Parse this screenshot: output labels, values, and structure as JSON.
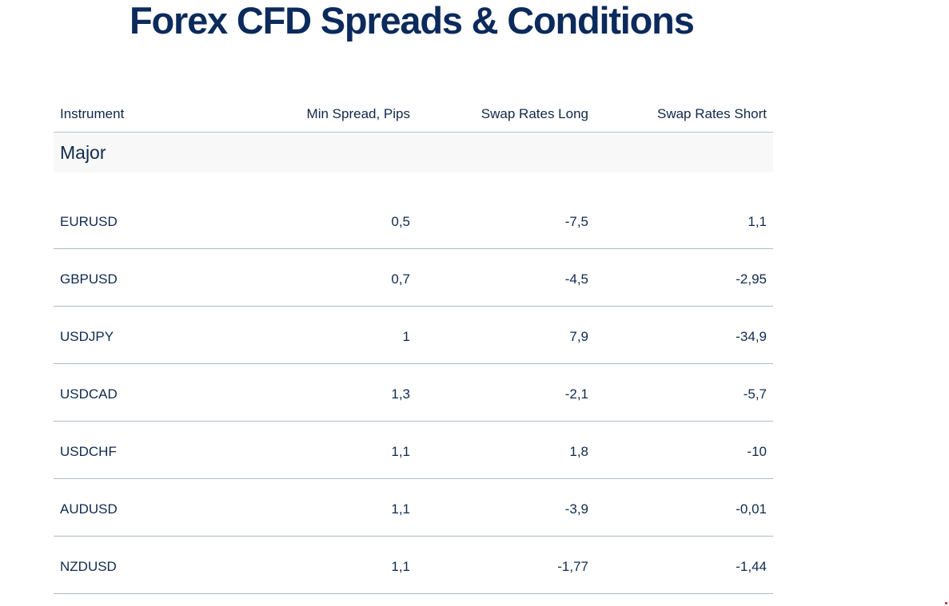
{
  "page": {
    "title": "Forex CFD Spreads & Conditions"
  },
  "table": {
    "headers": {
      "instrument": "Instrument",
      "min_spread": "Min Spread, Pips",
      "swap_long": "Swap Rates Long",
      "swap_short": "Swap Rates Short"
    },
    "group_label": "Major",
    "rows": [
      {
        "instrument": "EURUSD",
        "min_spread": "0,5",
        "swap_long": "-7,5",
        "swap_short": "1,1"
      },
      {
        "instrument": "GBPUSD",
        "min_spread": "0,7",
        "swap_long": "-4,5",
        "swap_short": "-2,95"
      },
      {
        "instrument": "USDJPY",
        "min_spread": "1",
        "swap_long": "7,9",
        "swap_short": "-34,9"
      },
      {
        "instrument": "USDCAD",
        "min_spread": "1,3",
        "swap_long": "-2,1",
        "swap_short": "-5,7"
      },
      {
        "instrument": "USDCHF",
        "min_spread": "1,1",
        "swap_long": "1,8",
        "swap_short": "-10"
      },
      {
        "instrument": "AUDUSD",
        "min_spread": "1,1",
        "swap_long": "-3,9",
        "swap_short": "-0,01"
      },
      {
        "instrument": "NZDUSD",
        "min_spread": "1,1",
        "swap_long": "-1,77",
        "swap_short": "-1,44"
      }
    ]
  },
  "colors": {
    "title": "#0c2a5b",
    "text": "#0f2a4e",
    "divider": "#aebbc7",
    "group_bg": "#f8f8f8"
  }
}
